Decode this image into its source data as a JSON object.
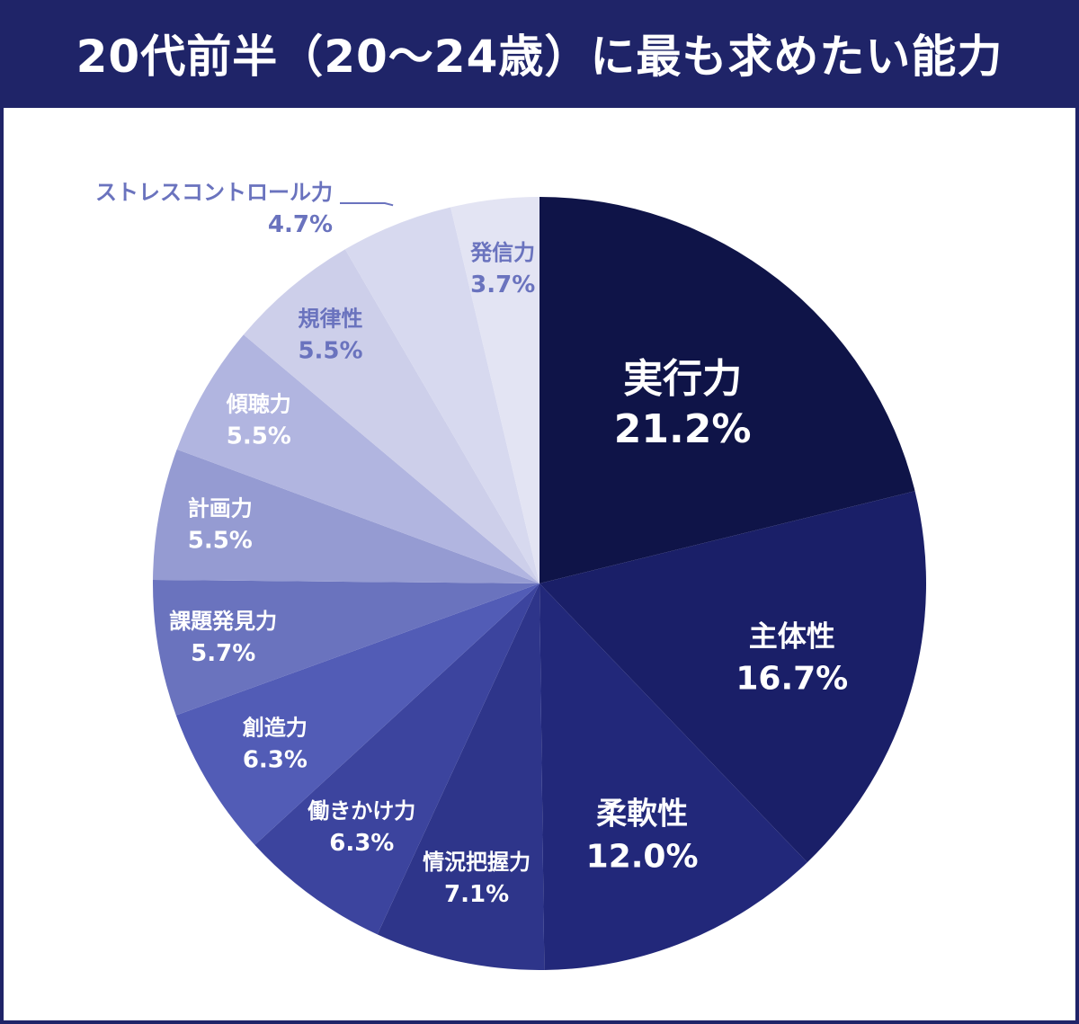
{
  "title": "20代前半（20〜24歳）に最も求めたい能力",
  "chart_data": {
    "type": "pie",
    "title": "20代前半（20〜24歳）に最も求めたい能力",
    "start": "12 o'clock",
    "direction": "clockwise",
    "slices": [
      {
        "label": "実行力",
        "value": 21.2,
        "value_text": "21.2%",
        "color": "#0f1448",
        "text_color": "#ffffff"
      },
      {
        "label": "主体性",
        "value": 16.7,
        "value_text": "16.7%",
        "color": "#1a1f68",
        "text_color": "#ffffff"
      },
      {
        "label": "柔軟性",
        "value": 12.0,
        "value_text": "12.0%",
        "color": "#22287a",
        "text_color": "#ffffff"
      },
      {
        "label": "情況把握力",
        "value": 7.1,
        "value_text": "7.1%",
        "color": "#2e358a",
        "text_color": "#ffffff"
      },
      {
        "label": "働きかけ力",
        "value": 6.3,
        "value_text": "6.3%",
        "color": "#3c449e",
        "text_color": "#ffffff"
      },
      {
        "label": "創造力",
        "value": 6.3,
        "value_text": "6.3%",
        "color": "#525cb6",
        "text_color": "#ffffff"
      },
      {
        "label": "課題発見力",
        "value": 5.7,
        "value_text": "5.7%",
        "color": "#6a73be",
        "text_color": "#ffffff"
      },
      {
        "label": "計画力",
        "value": 5.5,
        "value_text": "5.5%",
        "color": "#959bd2",
        "text_color": "#ffffff"
      },
      {
        "label": "傾聴力",
        "value": 5.5,
        "value_text": "5.5%",
        "color": "#b1b5e0",
        "text_color": "#ffffff"
      },
      {
        "label": "規律性",
        "value": 5.5,
        "value_text": "5.5%",
        "color": "#cdcfea",
        "text_color": "#6a73be"
      },
      {
        "label": "ストレスコントロール力",
        "value": 4.7,
        "value_text": "4.7%",
        "color": "#d7d9ef",
        "text_color": "#6a73be",
        "callout": true
      },
      {
        "label": "発信力",
        "value": 3.7,
        "value_text": "3.7%",
        "color": "#e3e4f3",
        "text_color": "#6a73be"
      }
    ]
  }
}
